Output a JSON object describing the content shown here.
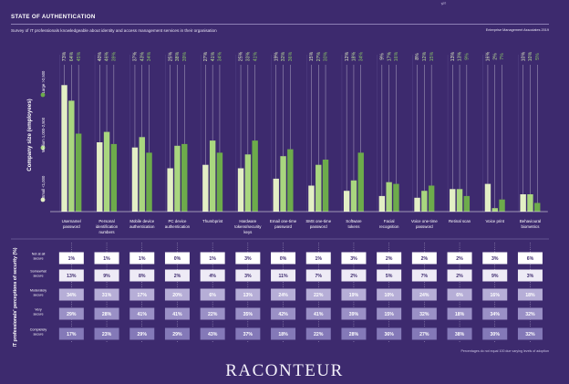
{
  "header": {
    "title": "STATE OF AUTHENTICATION",
    "subtitle": "Survey of IT professionals knowledgeable about identity and access management services in their organisation",
    "source": "Enterprise Management Associates 2019",
    "corner_text": "Mo"
  },
  "footnote": "Percentages do not equal 100 due varying levels of adoption",
  "brand": "RACONTEUR",
  "colors": {
    "background": "#3d2a6e",
    "small": "#e3efc5",
    "medium": "#a9d67f",
    "large": "#6dab4b",
    "row_shades": [
      "#ffffff",
      "#eeebf6",
      "#b6aed7",
      "#9a90c6",
      "#8479b8"
    ]
  },
  "chart_data": [
    {
      "type": "bar",
      "ylabel": "Company size (employees)",
      "categories": [
        "Username/ password",
        "Personal identification numbers",
        "Mobile device authentication",
        "PC device authentication",
        "Thumbprint",
        "Hardware tokens/security keys",
        "Email one-time password",
        "SMS one-time password",
        "Software tokens",
        "Facial recognition",
        "Voice one-time password",
        "Retinal scan",
        "Voice print",
        "Behavioural biometrics"
      ],
      "series": [
        {
          "name": "Small <1,000",
          "values": [
            73,
            40,
            37,
            25,
            27,
            25,
            19,
            15,
            12,
            9,
            8,
            13,
            16,
            10
          ]
        },
        {
          "name": "Medium 1,000-2,500",
          "values": [
            64,
            46,
            43,
            38,
            41,
            33,
            32,
            27,
            18,
            17,
            12,
            13,
            2,
            10
          ]
        },
        {
          "name": "Large >2,500",
          "values": [
            45,
            39,
            34,
            39,
            34,
            41,
            36,
            30,
            34,
            16,
            15,
            9,
            7,
            5
          ]
        }
      ],
      "value_labels": [
        [
          "73%",
          "64%",
          "45%"
        ],
        [
          "40%",
          "46%",
          "39%"
        ],
        [
          "37%",
          "43%",
          "34%"
        ],
        [
          "25%",
          "38%",
          "39%"
        ],
        [
          "27%",
          "41%",
          "34%"
        ],
        [
          "25%",
          "33%",
          "41%"
        ],
        [
          "19%",
          "32%",
          "36%"
        ],
        [
          "15%",
          "27%",
          "30%"
        ],
        [
          "12%",
          "18%",
          "34%"
        ],
        [
          "9%",
          "17%",
          "16%"
        ],
        [
          "8%",
          "12%",
          "15%"
        ],
        [
          "13%",
          "13%",
          "9%"
        ],
        [
          "16%",
          "2%",
          "7%"
        ],
        [
          "10%",
          "10%",
          "5%"
        ]
      ],
      "ylim": [
        0,
        80
      ]
    },
    {
      "type": "table",
      "ylabel": "IT professionals' perceptions of security (%)",
      "rows": [
        "Not at all secure",
        "Somewhat secure",
        "Moderately secure",
        "Very secure",
        "Completely secure"
      ],
      "columns": [
        "Username/ password",
        "Personal identification numbers",
        "Mobile device authentication",
        "PC device authentication",
        "Thumbprint",
        "Hardware tokens/security keys",
        "Email one-time password",
        "SMS one-time password",
        "Software tokens",
        "Facial recognition",
        "Voice one-time password",
        "Retinal scan",
        "Voice print",
        "Behavioural biometrics"
      ],
      "values": [
        [
          "1%",
          "13%",
          "34%",
          "29%",
          "17%"
        ],
        [
          "1%",
          "9%",
          "31%",
          "28%",
          "23%"
        ],
        [
          "1%",
          "8%",
          "17%",
          "41%",
          "29%"
        ],
        [
          "0%",
          "2%",
          "20%",
          "41%",
          "29%"
        ],
        [
          "1%",
          "4%",
          "6%",
          "22%",
          "43%"
        ],
        [
          "3%",
          "3%",
          "13%",
          "35%",
          "37%"
        ],
        [
          "0%",
          "11%",
          "24%",
          "42%",
          "18%"
        ],
        [
          "1%",
          "7%",
          "22%",
          "41%",
          "22%"
        ],
        [
          "3%",
          "2%",
          "19%",
          "39%",
          "28%"
        ],
        [
          "2%",
          "5%",
          "10%",
          "15%",
          "36%"
        ],
        [
          "2%",
          "7%",
          "24%",
          "32%",
          "27%"
        ],
        [
          "2%",
          "2%",
          "6%",
          "18%",
          "38%"
        ],
        [
          "3%",
          "9%",
          "16%",
          "34%",
          "30%"
        ],
        [
          "6%",
          "3%",
          "18%",
          "32%",
          "32%"
        ]
      ]
    }
  ]
}
